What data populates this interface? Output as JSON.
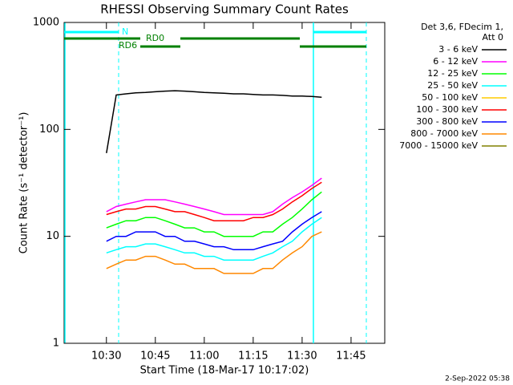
{
  "chart_data": {
    "type": "line",
    "title": "RHESSI Observing Summary Count Rates",
    "y_label": "Count Rate (s⁻¹ detector⁻¹)",
    "x_label": "Start Time (18-Mar-17 10:17:02)",
    "legend_title": [
      "Det 3,6, FDecim 1,",
      "Att 0"
    ],
    "footer": "2-Sep-2022 05:38",
    "flag_labels": [
      "N",
      "RD0",
      "RD6"
    ],
    "log_y": true,
    "xlim": [
      "10:17:02",
      "11:55:20"
    ],
    "xticks": [
      "10:30",
      "10:45",
      "11:00",
      "11:15",
      "11:30",
      "11:45"
    ],
    "ylim": [
      1,
      1000
    ],
    "yticks": [
      1,
      10,
      100,
      1000
    ],
    "x": [
      "10:30",
      "10:33",
      "10:36",
      "10:39",
      "10:42",
      "10:45",
      "10:48",
      "10:51",
      "10:54",
      "10:57",
      "11:00",
      "11:03",
      "11:06",
      "11:09",
      "11:12",
      "11:15",
      "11:18",
      "11:21",
      "11:24",
      "11:27",
      "11:30",
      "11:33",
      "11:36"
    ],
    "series": [
      {
        "name": "3 - 6 keV",
        "color": "#000000",
        "values": [
          60,
          210,
          215,
          220,
          222,
          225,
          228,
          230,
          228,
          225,
          222,
          220,
          218,
          215,
          215,
          212,
          210,
          210,
          208,
          205,
          205,
          203,
          200
        ]
      },
      {
        "name": "6 - 12 keV",
        "color": "#ff00ff",
        "values": [
          17,
          19,
          20,
          21,
          22,
          22,
          22,
          21,
          20,
          19,
          18,
          17,
          16,
          16,
          16,
          16,
          16,
          17,
          20,
          23,
          26,
          30,
          35
        ]
      },
      {
        "name": "12 - 25 keV",
        "color": "#00ff00",
        "values": [
          12,
          13,
          14,
          14,
          15,
          15,
          14,
          13,
          12,
          12,
          11,
          11,
          10,
          10,
          10,
          10,
          11,
          11,
          13,
          15,
          18,
          22,
          26
        ]
      },
      {
        "name": "25 - 50 keV",
        "color": "#00ffff",
        "values": [
          7,
          7.5,
          8,
          8,
          8.5,
          8.5,
          8,
          7.5,
          7,
          7,
          6.5,
          6.5,
          6,
          6,
          6,
          6,
          6.5,
          7,
          8,
          9,
          11,
          13,
          15
        ]
      },
      {
        "name": "50 - 100 keV",
        "color": "#ffcc00",
        "values": [
          null,
          null,
          null,
          null,
          null,
          null,
          null,
          null,
          null,
          null,
          null,
          null,
          null,
          null,
          null,
          null,
          null,
          null,
          null,
          null,
          null,
          null,
          null
        ]
      },
      {
        "name": "100 - 300 keV",
        "color": "#ff0000",
        "values": [
          16,
          17,
          18,
          18,
          19,
          19,
          18,
          17,
          17,
          16,
          15,
          14,
          14,
          14,
          14,
          15,
          15,
          16,
          18,
          21,
          24,
          28,
          32
        ]
      },
      {
        "name": "300 - 800 keV",
        "color": "#0000ff",
        "values": [
          9,
          10,
          10,
          11,
          11,
          11,
          10,
          10,
          9,
          9,
          8.5,
          8,
          8,
          7.5,
          7.5,
          7.5,
          8,
          8.5,
          9,
          11,
          13,
          15,
          17
        ]
      },
      {
        "name": "800 - 7000 keV",
        "color": "#ff8800",
        "values": [
          5,
          5.5,
          6,
          6,
          6.5,
          6.5,
          6,
          5.5,
          5.5,
          5,
          5,
          5,
          4.5,
          4.5,
          4.5,
          4.5,
          5,
          5,
          6,
          7,
          8,
          10,
          11
        ]
      },
      {
        "name": "7000 - 15000 keV",
        "color": "#808000",
        "values": [
          null,
          null,
          null,
          null,
          null,
          null,
          null,
          null,
          null,
          null,
          null,
          null,
          null,
          null,
          null,
          null,
          null,
          null,
          null,
          null,
          null,
          null,
          null
        ]
      }
    ]
  }
}
